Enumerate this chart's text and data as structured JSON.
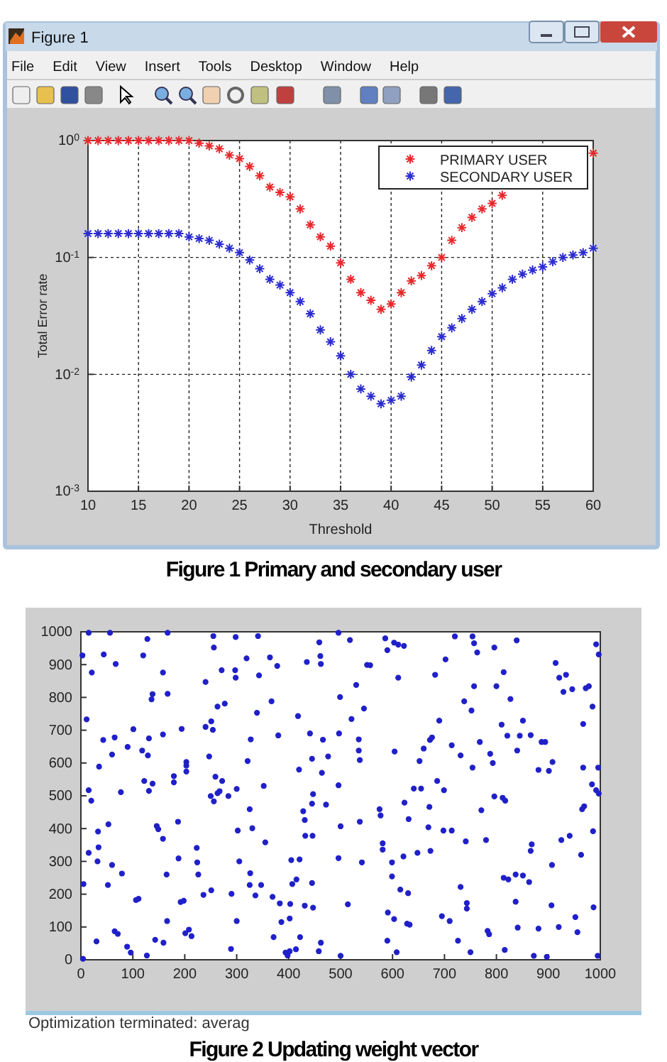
{
  "chart_data": [
    {
      "type": "scatter",
      "xlabel": "Threshold",
      "ylabel": "Total Error rate",
      "log": true,
      "grid": true,
      "legend": "top right",
      "marker": "cross",
      "x": [
        10,
        11,
        12,
        13,
        14,
        15,
        16,
        17,
        18,
        19,
        20,
        21,
        22,
        23,
        24,
        25,
        26,
        27,
        28,
        29,
        30,
        31,
        32,
        33,
        34,
        35,
        36,
        37,
        38,
        39,
        40,
        41,
        42,
        43,
        44,
        45,
        46,
        47,
        48,
        49,
        50,
        51,
        52,
        53,
        54,
        55,
        56,
        57,
        58,
        59,
        60
      ],
      "xlim": [
        10,
        60
      ],
      "xticks": [
        10,
        15,
        20,
        25,
        30,
        35,
        40,
        45,
        50,
        55,
        60
      ],
      "ylim": [
        0.001,
        1
      ],
      "yticks": [
        {
          "value": 0.001,
          "label": "10$^{-3}$"
        },
        {
          "value": 0.01,
          "label": "10$^{-2}$"
        },
        {
          "value": 0.1,
          "label": "10$^{-1}$"
        },
        {
          "value": 1,
          "label": "10$^{0}$"
        }
      ],
      "series": [
        {
          "name": "PRIMARY USER",
          "color": "#e8282d",
          "values": [
            1,
            1,
            1,
            1,
            1,
            1,
            1,
            1,
            1,
            1,
            1,
            0.95,
            0.9,
            0.85,
            0.75,
            0.7,
            0.6,
            0.5,
            0.4,
            0.36,
            0.33,
            0.26,
            0.19,
            0.15,
            0.125,
            0.09,
            0.065,
            0.05,
            0.043,
            0.036,
            0.04,
            0.05,
            0.063,
            0.07,
            0.085,
            0.1,
            0.14,
            0.18,
            0.22,
            0.26,
            0.29,
            0.34,
            null,
            null,
            null,
            null,
            null,
            null,
            null,
            null,
            0.78
          ]
        },
        {
          "name": "SECONDARY USER",
          "color": "#2b2bd0",
          "values": [
            0.16,
            0.16,
            0.16,
            0.16,
            0.16,
            0.16,
            0.16,
            0.16,
            0.16,
            0.16,
            0.15,
            0.145,
            0.14,
            0.13,
            0.12,
            0.11,
            0.095,
            0.08,
            0.065,
            0.058,
            0.05,
            0.042,
            0.033,
            0.024,
            0.019,
            0.0144,
            0.01,
            0.0075,
            0.0065,
            0.0056,
            0.006,
            0.0065,
            0.0095,
            0.012,
            0.016,
            0.021,
            0.025,
            0.03,
            0.036,
            0.042,
            0.049,
            0.055,
            0.065,
            0.072,
            0.078,
            0.083,
            0.092,
            0.1,
            0.105,
            0.11,
            0.12
          ]
        }
      ],
      "annotations": [
        "Figure 1",
        "File",
        "Edit",
        "View",
        "Insert",
        "Tools",
        "Desktop",
        "Window",
        "Help",
        "Figure 1 Primary and secondary user"
      ]
    },
    {
      "type": "scatter",
      "marker": "circle",
      "xlim": [
        0,
        1000
      ],
      "xticks": [
        0,
        100,
        200,
        300,
        400,
        500,
        600,
        700,
        800,
        900,
        1000
      ],
      "ylim": [
        0,
        1000
      ],
      "yticks": [
        0,
        100,
        200,
        300,
        400,
        500,
        600,
        700,
        800,
        900,
        1000
      ],
      "series": [
        {
          "color": "#2020c8",
          "x": [
            3,
            21,
            44,
            67,
            120,
            158,
            128,
            15,
            56,
            167,
            255,
            341,
            298,
            256,
            271,
            297,
            298,
            319,
            343,
            364,
            378,
            435,
            461,
            462,
            459,
            496,
            518,
            530,
            551,
            240,
            138,
            136,
            167,
            263,
            277,
            339,
            367,
            499,
            545,
            11,
            251,
            240,
            254,
            194,
            101,
            158,
            43,
            65,
            131,
            90,
            118,
            129,
            60,
            35,
            247,
            321,
            327,
            380,
            418,
            441,
            466,
            497,
            521,
            535,
            535,
            537,
            476,
            445,
            420,
            464,
            203,
            203,
            203,
            179,
            179,
            122,
            138,
            131,
            15,
            20,
            77,
            259,
            272,
            267,
            263,
            284,
            300,
            250,
            256,
            352,
            496,
            447,
            445,
            472,
            325,
            428,
            431,
            537,
            500,
            33,
            53,
            146,
            149,
            187,
            302,
            330,
            432,
            446,
            586,
            590,
            603,
            611,
            622,
            557,
            611,
            682,
            702,
            720,
            754,
            757,
            763,
            796,
            839,
            814,
            800,
            757,
            827,
            738,
            752,
            690,
            810,
            851,
            676,
            672,
            660,
            604,
            652,
            714,
            731,
            768,
            788,
            793,
            754,
            821,
            845,
            866,
            840,
            887,
            894,
            908,
            881,
            901,
            914,
            921,
            934,
            929,
            946,
            972,
            978,
            985,
            967,
            992,
            997,
            967,
            996,
            984,
            992,
            997,
            641,
            655,
            686,
            699,
            623,
            671,
            575,
            577,
            631,
            669,
            698,
            714,
            771,
            796,
            812,
            817,
            965,
            969,
            986,
            941,
            15,
            34,
            32,
            60,
            79,
            52,
            5,
            158,
            355,
            188,
            223,
            224,
            305,
            326,
            405,
            496,
            541,
            421,
            165,
            226,
            347,
            407,
            415,
            325,
            445,
            106,
            111,
            192,
            198,
            236,
            251,
            290,
            336,
            369,
            383,
            403,
            431,
            447,
            514,
            166,
            65,
            71,
            89,
            96,
            127,
            143,
            159,
            30,
            4,
            208,
            213,
            201,
            300,
            386,
            402,
            371,
            422,
            289,
            394,
            402,
            414,
            398,
            462,
            458,
            500,
            741,
            780,
            868,
            866,
            925,
            963,
            599,
            621,
            581,
            581,
            648,
            673,
            599,
            615,
            630,
            731,
            814,
            823,
            837,
            851,
            863,
            907,
            906,
            837,
            987,
            591,
            603,
            628,
            633,
            695,
            710,
            743,
            743,
            783,
            786,
            841,
            881,
            920,
            952,
            956,
            726,
            750,
            816,
            872,
            897,
            995,
            608,
            590
          ],
          "values": [
            928,
            876,
            931,
            902,
            928,
            876,
            978,
            997,
            997,
            997,
            987,
            987,
            984,
            952,
            883,
            883,
            860,
            919,
            867,
            922,
            896,
            908,
            926,
            902,
            968,
            997,
            975,
            838,
            899,
            847,
            810,
            794,
            811,
            772,
            781,
            753,
            788,
            801,
            766,
            733,
            727,
            710,
            701,
            704,
            703,
            687,
            670,
            678,
            675,
            649,
            638,
            623,
            626,
            589,
            620,
            606,
            672,
            684,
            743,
            690,
            671,
            690,
            734,
            672,
            638,
            609,
            620,
            613,
            580,
            570,
            603,
            592,
            574,
            560,
            541,
            545,
            537,
            515,
            517,
            485,
            511,
            558,
            545,
            514,
            508,
            499,
            521,
            499,
            483,
            530,
            532,
            505,
            476,
            473,
            459,
            453,
            426,
            421,
            407,
            391,
            413,
            408,
            398,
            421,
            394,
            401,
            378,
            378,
            980,
            944,
            967,
            961,
            957,
            898,
            860,
            869,
            916,
            986,
            986,
            965,
            937,
            952,
            974,
            877,
            834,
            834,
            795,
            788,
            760,
            729,
            717,
            729,
            678,
            670,
            644,
            635,
            606,
            654,
            623,
            664,
            628,
            600,
            586,
            683,
            683,
            685,
            638,
            664,
            664,
            603,
            579,
            576,
            905,
            860,
            869,
            817,
            825,
            828,
            834,
            772,
            719,
            962,
            931,
            586,
            586,
            535,
            517,
            507,
            522,
            522,
            545,
            517,
            479,
            466,
            459,
            440,
            429,
            404,
            394,
            394,
            456,
            498,
            494,
            485,
            459,
            468,
            392,
            378,
            326,
            343,
            300,
            289,
            263,
            228,
            231,
            369,
            358,
            309,
            341,
            297,
            300,
            264,
            304,
            310,
            297,
            306,
            260,
            260,
            228,
            231,
            245,
            228,
            234,
            182,
            186,
            176,
            180,
            198,
            212,
            201,
            196,
            192,
            172,
            170,
            165,
            159,
            169,
            118,
            87,
            79,
            40,
            22,
            13,
            61,
            52,
            56,
            3,
            92,
            72,
            81,
            118,
            115,
            126,
            69,
            69,
            33,
            22,
            26,
            32,
            13,
            52,
            26,
            12,
            361,
            365,
            352,
            332,
            365,
            320,
            297,
            315,
            355,
            336,
            326,
            332,
            254,
            214,
            203,
            222,
            250,
            245,
            260,
            257,
            237,
            289,
            166,
            177,
            160,
            144,
            124,
            110,
            107,
            133,
            118,
            173,
            156,
            88,
            78,
            98,
            95,
            100,
            130,
            84,
            58,
            23,
            30,
            12,
            9,
            12,
            23,
            58
          ]
        }
      ],
      "annotations": [
        "Optimization terminated: averag",
        "Figure 2 Updating weight vector"
      ]
    }
  ]
}
